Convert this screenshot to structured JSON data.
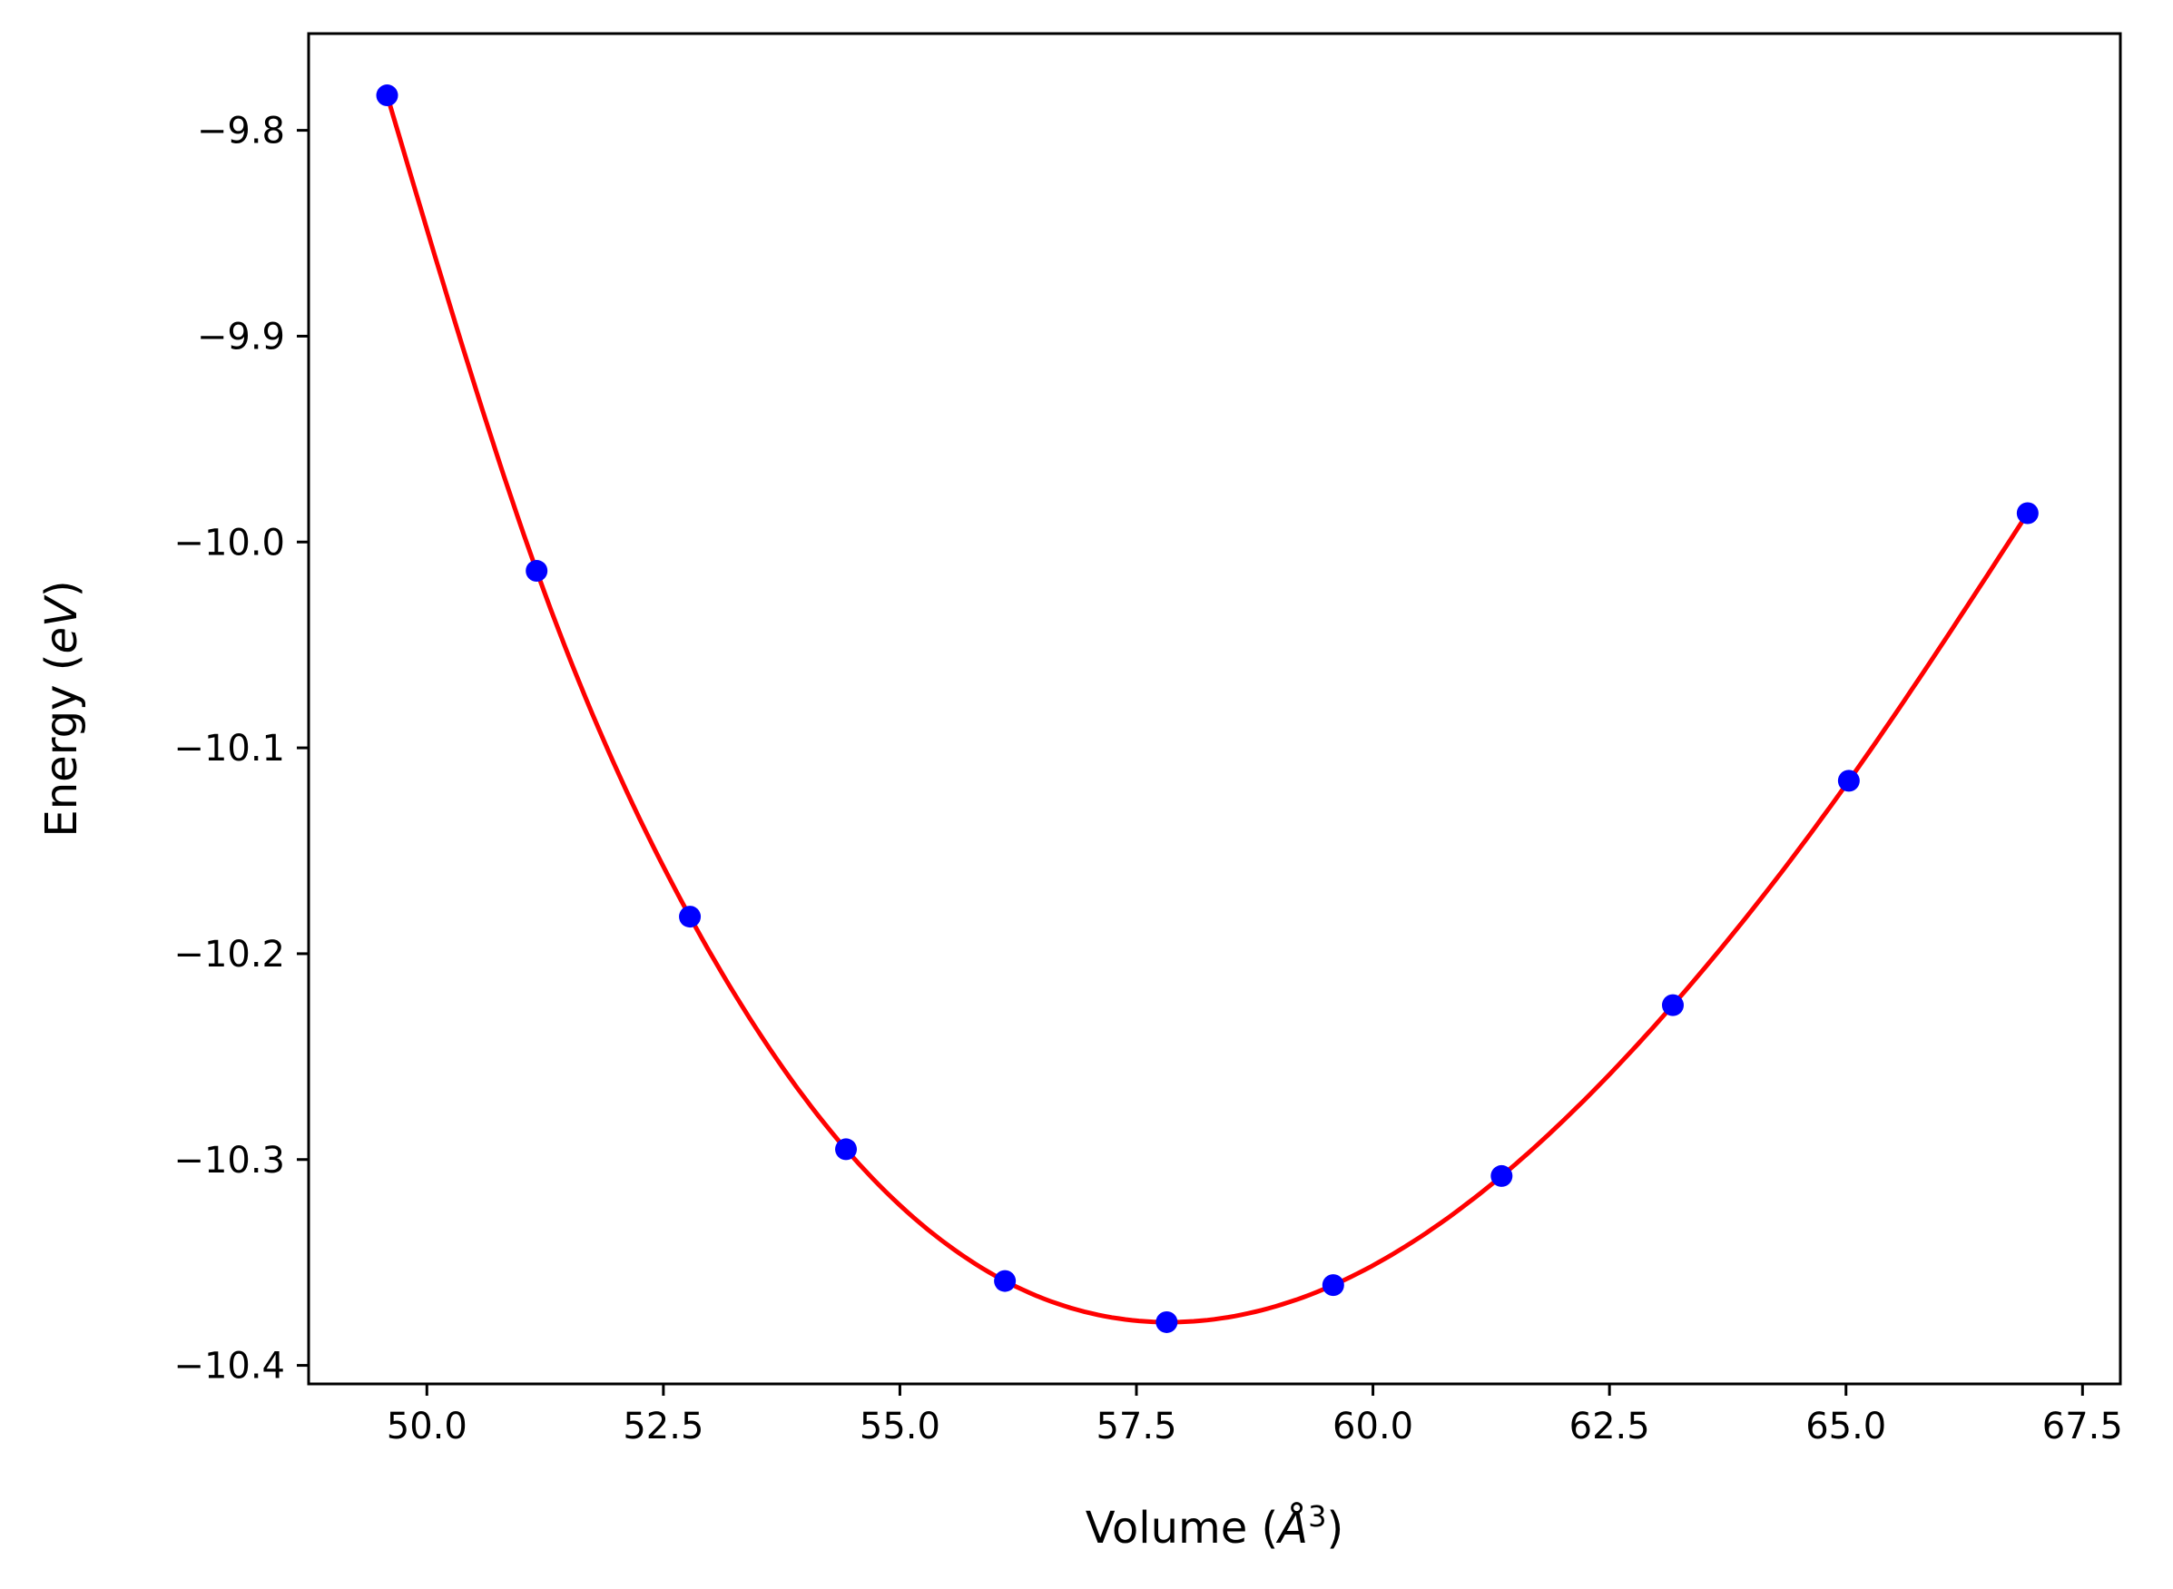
{
  "chart_data": {
    "type": "line",
    "xlabel": "Volume (",
    "xlabel_math": "Å",
    "xlabel_sup": "3",
    "xlabel_close": ")",
    "ylabel": "Energy (",
    "ylabel_math": "eV",
    "ylabel_close": ")",
    "xlim": [
      48.75,
      67.9
    ],
    "ylim": [
      -10.409,
      -9.753
    ],
    "xticks": [
      50.0,
      52.5,
      55.0,
      57.5,
      60.0,
      62.5,
      65.0,
      67.5
    ],
    "xtick_labels": [
      "50.0",
      "52.5",
      "55.0",
      "57.5",
      "60.0",
      "62.5",
      "65.0",
      "67.5"
    ],
    "yticks": [
      -9.8,
      -9.9,
      -10.0,
      -10.1,
      -10.2,
      -10.3,
      -10.4
    ],
    "ytick_labels": [
      "−9.8",
      "−9.9",
      "−10.0",
      "−10.1",
      "−10.2",
      "−10.3",
      "−10.4"
    ],
    "grid": false,
    "series": [
      {
        "kind": "points",
        "color": "#0000ff",
        "x": [
          49.58,
          51.16,
          52.78,
          54.43,
          56.11,
          57.82,
          59.58,
          61.36,
          63.17,
          65.03,
          66.92
        ],
        "y": [
          -9.783,
          -10.014,
          -10.182,
          -10.295,
          -10.359,
          -10.379,
          -10.361,
          -10.308,
          -10.225,
          -10.116,
          -9.986
        ]
      },
      {
        "kind": "fit",
        "color": "#ff0000",
        "x": [
          49.58,
          51.16,
          52.78,
          54.43,
          56.11,
          57.82,
          59.58,
          61.36,
          63.17,
          65.03,
          66.92
        ],
        "y": [
          -9.783,
          -10.014,
          -10.182,
          -10.295,
          -10.359,
          -10.379,
          -10.361,
          -10.308,
          -10.225,
          -10.116,
          -9.986
        ]
      }
    ]
  }
}
